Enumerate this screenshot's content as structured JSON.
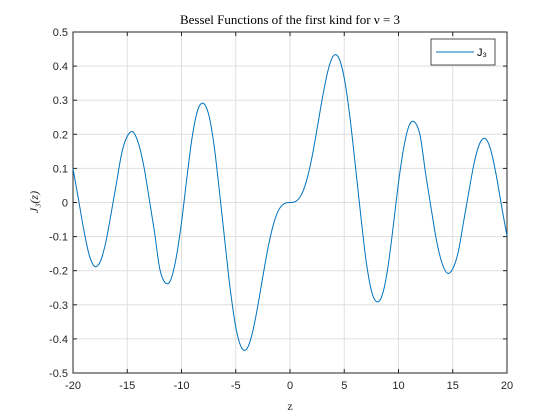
{
  "chart_data": {
    "type": "line",
    "title": "Bessel Functions of the first kind for ν = 3",
    "xlabel": "z",
    "ylabel": "J₃(z)",
    "xlim": [
      -20,
      20
    ],
    "ylim": [
      -0.5,
      0.5
    ],
    "x_ticks": [
      -20,
      -15,
      -10,
      -5,
      0,
      5,
      10,
      15,
      20
    ],
    "x_tick_labels": [
      "-20",
      "-15",
      "-10",
      "-5",
      "0",
      "5",
      "10",
      "15",
      "20"
    ],
    "y_ticks": [
      -0.5,
      -0.4,
      -0.3,
      -0.2,
      -0.1,
      0,
      0.1,
      0.2,
      0.3,
      0.4,
      0.5
    ],
    "y_tick_labels": [
      "-0.5",
      "-0.4",
      "-0.3",
      "-0.2",
      "-0.1",
      "0",
      "0.1",
      "0.2",
      "0.3",
      "0.4",
      "0.5"
    ],
    "grid": true,
    "legend_position": "top-right",
    "series": [
      {
        "name": "J₃",
        "color": "#0072bd",
        "x": [
          -20,
          -19.5,
          -19,
          -18.5,
          -18,
          -17.5,
          -17,
          -16.5,
          -16,
          -15.5,
          -15,
          -14.5,
          -14,
          -13.5,
          -13,
          -12.5,
          -12,
          -11.5,
          -11,
          -10.5,
          -10,
          -9.5,
          -9,
          -8.5,
          -8,
          -7.5,
          -7,
          -6.5,
          -6,
          -5.5,
          -5,
          -4.5,
          -4,
          -3.5,
          -3,
          -2.5,
          -2,
          -1.5,
          -1,
          -0.5,
          0,
          0.5,
          1,
          1.5,
          2,
          2.5,
          3,
          3.5,
          4,
          4.5,
          5,
          5.5,
          6,
          6.5,
          7,
          7.5,
          8,
          8.5,
          9,
          9.5,
          10,
          10.5,
          11,
          11.5,
          12,
          12.5,
          13,
          13.5,
          14,
          14.5,
          15,
          15.5,
          16,
          16.5,
          17,
          17.5,
          18,
          18.5,
          19,
          19.5,
          20
        ],
        "y": [
          0.099,
          0.0105,
          -0.0814,
          -0.1545,
          -0.1874,
          -0.1742,
          -0.1197,
          -0.0347,
          0.0563,
          0.146,
          0.1943,
          0.2073,
          0.1766,
          0.1109,
          0.0157,
          -0.0842,
          -0.1951,
          -0.2354,
          -0.2274,
          -0.1637,
          -0.0584,
          0.0736,
          0.1951,
          0.2715,
          0.2911,
          0.2583,
          0.1682,
          0.0312,
          -0.1148,
          -0.2561,
          -0.365,
          -0.4237,
          -0.4302,
          -0.3868,
          -0.3091,
          -0.2166,
          -0.1289,
          -0.061,
          -0.0196,
          -0.0026,
          0,
          0.0026,
          0.0196,
          0.061,
          0.1289,
          0.2166,
          0.3091,
          0.3868,
          0.4302,
          0.4237,
          0.365,
          0.2561,
          0.1148,
          -0.0312,
          -0.1682,
          -0.2583,
          -0.2911,
          -0.2715,
          -0.1951,
          -0.0736,
          0.0584,
          0.1637,
          0.2274,
          0.2354,
          0.1951,
          0.0842,
          -0.0157,
          -0.1109,
          -0.1766,
          -0.2073,
          -0.1943,
          -0.146,
          -0.0563,
          0.0347,
          0.1197,
          0.1742,
          0.1874,
          0.1545,
          0.0814,
          -0.0105,
          -0.099
        ]
      }
    ]
  }
}
